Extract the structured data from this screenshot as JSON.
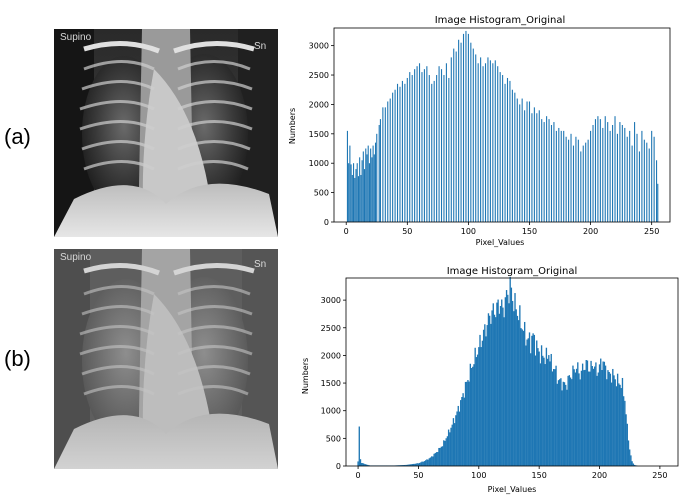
{
  "panel_labels": [
    "(a)",
    "(b)"
  ],
  "xray_labels": {
    "a": {
      "left": "Supino",
      "right": "Sn"
    },
    "b": {
      "left": "Supino",
      "right": "Sn"
    }
  },
  "chart_data": [
    {
      "type": "bar",
      "title": "Image Histogram_Original",
      "xlabel": "Pixel_Values",
      "ylabel": "Numbers",
      "xlim": [
        -10,
        265
      ],
      "ylim": [
        0,
        3300
      ],
      "xticks": [
        0,
        50,
        100,
        150,
        200,
        250
      ],
      "yticks": [
        0,
        500,
        1000,
        1500,
        2000,
        2500,
        3000
      ],
      "bar_color": "#1f77b4",
      "x": [
        1,
        2,
        3,
        4,
        5,
        6,
        7,
        8,
        9,
        10,
        11,
        12,
        13,
        14,
        15,
        16,
        17,
        18,
        19,
        20,
        21,
        22,
        23,
        24,
        25,
        27,
        28,
        30,
        32,
        34,
        36,
        38,
        40,
        42,
        44,
        46,
        48,
        50,
        52,
        54,
        56,
        58,
        60,
        62,
        64,
        66,
        68,
        70,
        72,
        74,
        76,
        78,
        80,
        82,
        84,
        86,
        88,
        90,
        92,
        94,
        96,
        98,
        100,
        102,
        104,
        106,
        108,
        110,
        112,
        114,
        116,
        118,
        120,
        122,
        124,
        126,
        128,
        130,
        132,
        134,
        136,
        138,
        140,
        142,
        144,
        146,
        148,
        150,
        152,
        154,
        156,
        158,
        160,
        162,
        164,
        166,
        168,
        170,
        172,
        174,
        176,
        178,
        180,
        182,
        184,
        186,
        188,
        190,
        192,
        194,
        196,
        198,
        200,
        202,
        204,
        206,
        208,
        210,
        212,
        214,
        216,
        218,
        220,
        222,
        224,
        226,
        228,
        230,
        232,
        234,
        236,
        238,
        240,
        242,
        244,
        246,
        248,
        250,
        252,
        254,
        255
      ],
      "values": [
        1550,
        1000,
        1300,
        980,
        800,
        1000,
        750,
        900,
        1000,
        780,
        1100,
        800,
        1050,
        1200,
        900,
        1250,
        1150,
        1300,
        1000,
        1250,
        1100,
        1300,
        1150,
        1350,
        1500,
        1650,
        1750,
        1950,
        1950,
        2050,
        2100,
        2200,
        2250,
        2350,
        2300,
        2400,
        2350,
        2450,
        2550,
        2500,
        2600,
        2650,
        2700,
        2550,
        2600,
        2650,
        2500,
        2350,
        2400,
        2500,
        2650,
        2600,
        2500,
        2700,
        2450,
        2800,
        2950,
        2900,
        3100,
        3050,
        3200,
        3250,
        3200,
        3050,
        2950,
        2850,
        2700,
        2800,
        2650,
        2700,
        2800,
        2750,
        2700,
        2750,
        2650,
        2550,
        2500,
        2350,
        2450,
        2400,
        2250,
        2200,
        2100,
        2000,
        2100,
        1900,
        2050,
        2050,
        1850,
        1950,
        1850,
        1900,
        1750,
        1700,
        1800,
        1750,
        1650,
        1700,
        1550,
        1600,
        1550,
        1550,
        1450,
        1400,
        1500,
        1300,
        1450,
        1400,
        1200,
        1300,
        1350,
        1400,
        1550,
        1650,
        1750,
        1800,
        1750,
        1600,
        1800,
        1700,
        1550,
        1650,
        1800,
        1500,
        1700,
        1650,
        1600,
        1450,
        1550,
        1300,
        1700,
        1500,
        1200,
        1550,
        1400,
        1350,
        1250,
        1550,
        1450,
        1050,
        650
      ]
    },
    {
      "type": "bar",
      "title": "Image Histogram_Original",
      "xlabel": "Pixel_Values",
      "ylabel": "Numbers",
      "xlim": [
        -10,
        265
      ],
      "ylim": [
        0,
        3400
      ],
      "xticks": [
        0,
        50,
        100,
        150,
        200,
        250
      ],
      "yticks": [
        0,
        500,
        1000,
        1500,
        2000,
        2500,
        3000
      ],
      "bar_color": "#1f77b4",
      "curve": [
        [
          0,
          80
        ],
        [
          1,
          700
        ],
        [
          2,
          120
        ],
        [
          3,
          60
        ],
        [
          5,
          40
        ],
        [
          8,
          20
        ],
        [
          10,
          10
        ],
        [
          20,
          10
        ],
        [
          30,
          10
        ],
        [
          40,
          20
        ],
        [
          50,
          50
        ],
        [
          55,
          90
        ],
        [
          60,
          150
        ],
        [
          65,
          250
        ],
        [
          70,
          380
        ],
        [
          75,
          600
        ],
        [
          80,
          850
        ],
        [
          85,
          1150
        ],
        [
          90,
          1500
        ],
        [
          95,
          1850
        ],
        [
          100,
          2150
        ],
        [
          105,
          2450
        ],
        [
          110,
          2750
        ],
        [
          115,
          2850
        ],
        [
          118,
          2950
        ],
        [
          120,
          2800
        ],
        [
          122,
          3000
        ],
        [
          124,
          3100
        ],
        [
          126,
          3250
        ],
        [
          128,
          3050
        ],
        [
          130,
          2900
        ],
        [
          132,
          2800
        ],
        [
          135,
          2600
        ],
        [
          138,
          2400
        ],
        [
          140,
          2300
        ],
        [
          143,
          2250
        ],
        [
          145,
          2350
        ],
        [
          148,
          2150
        ],
        [
          150,
          2050
        ],
        [
          153,
          2000
        ],
        [
          156,
          1950
        ],
        [
          158,
          2050
        ],
        [
          160,
          1850
        ],
        [
          163,
          1750
        ],
        [
          166,
          1550
        ],
        [
          169,
          1500
        ],
        [
          172,
          1450
        ],
        [
          175,
          1600
        ],
        [
          178,
          1700
        ],
        [
          181,
          1800
        ],
        [
          184,
          1650
        ],
        [
          187,
          1800
        ],
        [
          190,
          1850
        ],
        [
          192,
          1750
        ],
        [
          195,
          1850
        ],
        [
          198,
          1700
        ],
        [
          200,
          1800
        ],
        [
          203,
          1900
        ],
        [
          205,
          1750
        ],
        [
          208,
          1650
        ],
        [
          211,
          1650
        ],
        [
          214,
          1550
        ],
        [
          217,
          1500
        ],
        [
          219,
          1450
        ],
        [
          221,
          1200
        ],
        [
          223,
          700
        ],
        [
          225,
          300
        ],
        [
          227,
          80
        ],
        [
          229,
          20
        ],
        [
          232,
          0
        ],
        [
          255,
          0
        ]
      ]
    }
  ]
}
